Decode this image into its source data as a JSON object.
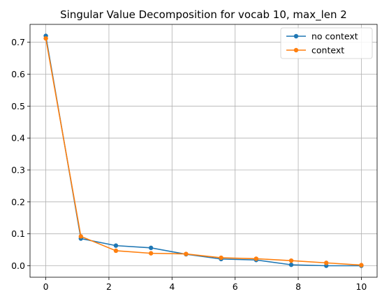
{
  "chart_data": {
    "type": "line",
    "title": "Singular Value Decomposition for vocab 10, max_len 2",
    "xlabel": "",
    "ylabel": "",
    "xlim": [
      -0.5,
      10.5
    ],
    "ylim": [
      -0.036,
      0.756
    ],
    "xticks": [
      0,
      2,
      4,
      6,
      8,
      10
    ],
    "xtick_labels": [
      "0",
      "2",
      "4",
      "6",
      "8",
      "10"
    ],
    "yticks": [
      0.0,
      0.1,
      0.2,
      0.3,
      0.4,
      0.5,
      0.6,
      0.7
    ],
    "ytick_labels": [
      "0.0",
      "0.1",
      "0.2",
      "0.3",
      "0.4",
      "0.5",
      "0.6",
      "0.7"
    ],
    "grid": true,
    "legend_position": "top-right",
    "x": [
      0,
      1.111,
      2.222,
      3.333,
      4.444,
      5.556,
      6.667,
      7.778,
      8.889,
      10
    ],
    "series": [
      {
        "name": "no context",
        "color": "#1f77b4",
        "marker": "circle",
        "values": [
          0.72,
          0.085,
          0.063,
          0.056,
          0.036,
          0.021,
          0.018,
          0.003,
          0.0,
          0.0
        ]
      },
      {
        "name": "context",
        "color": "#ff7f0e",
        "marker": "circle",
        "values": [
          0.712,
          0.092,
          0.047,
          0.039,
          0.037,
          0.025,
          0.022,
          0.016,
          0.009,
          0.002
        ]
      }
    ]
  }
}
